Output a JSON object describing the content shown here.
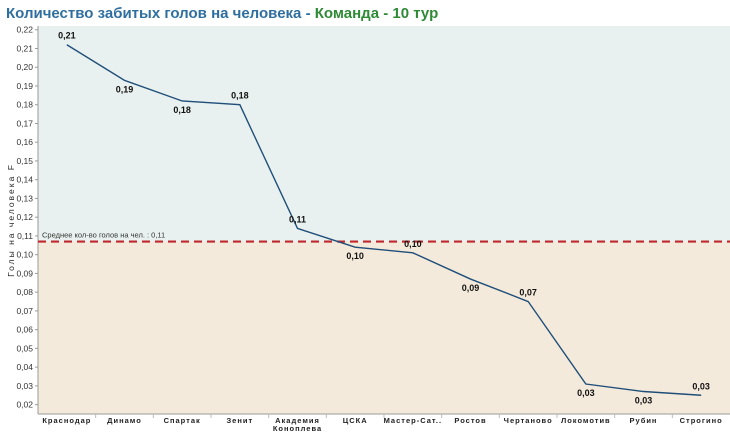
{
  "title": {
    "part1": "Количество забитых голов на человека",
    "sep": " - ",
    "part2": "Команда - 10 тур"
  },
  "colors": {
    "above_band": "#e8f1ef",
    "below_band": "#f4eadb",
    "line": "#1f4e79",
    "reference": "#c0282c",
    "title_main": "#2f6f9f",
    "title_sub": "#2f8a36"
  },
  "chart_data": {
    "type": "line",
    "title": "Количество забитых голов на человека - Команда - 10 тур",
    "xlabel": "",
    "ylabel": "Голы на человека F",
    "ylim": [
      0.015,
      0.222
    ],
    "yticks": [
      0.02,
      0.03,
      0.04,
      0.05,
      0.06,
      0.07,
      0.08,
      0.09,
      0.1,
      0.11,
      0.12,
      0.13,
      0.14,
      0.15,
      0.16,
      0.17,
      0.18,
      0.19,
      0.2,
      0.21,
      0.22
    ],
    "categories": [
      "Краснодар",
      "Динамо",
      "Спартак",
      "Зенит",
      "Академия Коноплева",
      "ЦСКА",
      "Мастер-Сат..",
      "Ростов",
      "Чертаново",
      "Локомотив",
      "Рубин",
      "Строгино"
    ],
    "values": [
      0.212,
      0.193,
      0.182,
      0.18,
      0.114,
      0.104,
      0.101,
      0.087,
      0.075,
      0.031,
      0.027,
      0.025
    ],
    "data_labels": [
      "0,21",
      "0,19",
      "0,18",
      "0,18",
      "0,11",
      "0,10",
      "0,10",
      "0,09",
      "0,07",
      "0,03",
      "0,03",
      "0,03"
    ],
    "reference_line": {
      "value": 0.107,
      "label": "Среднее кол-во голов на чел. : 0,11"
    },
    "grid": false,
    "legend": "none"
  }
}
